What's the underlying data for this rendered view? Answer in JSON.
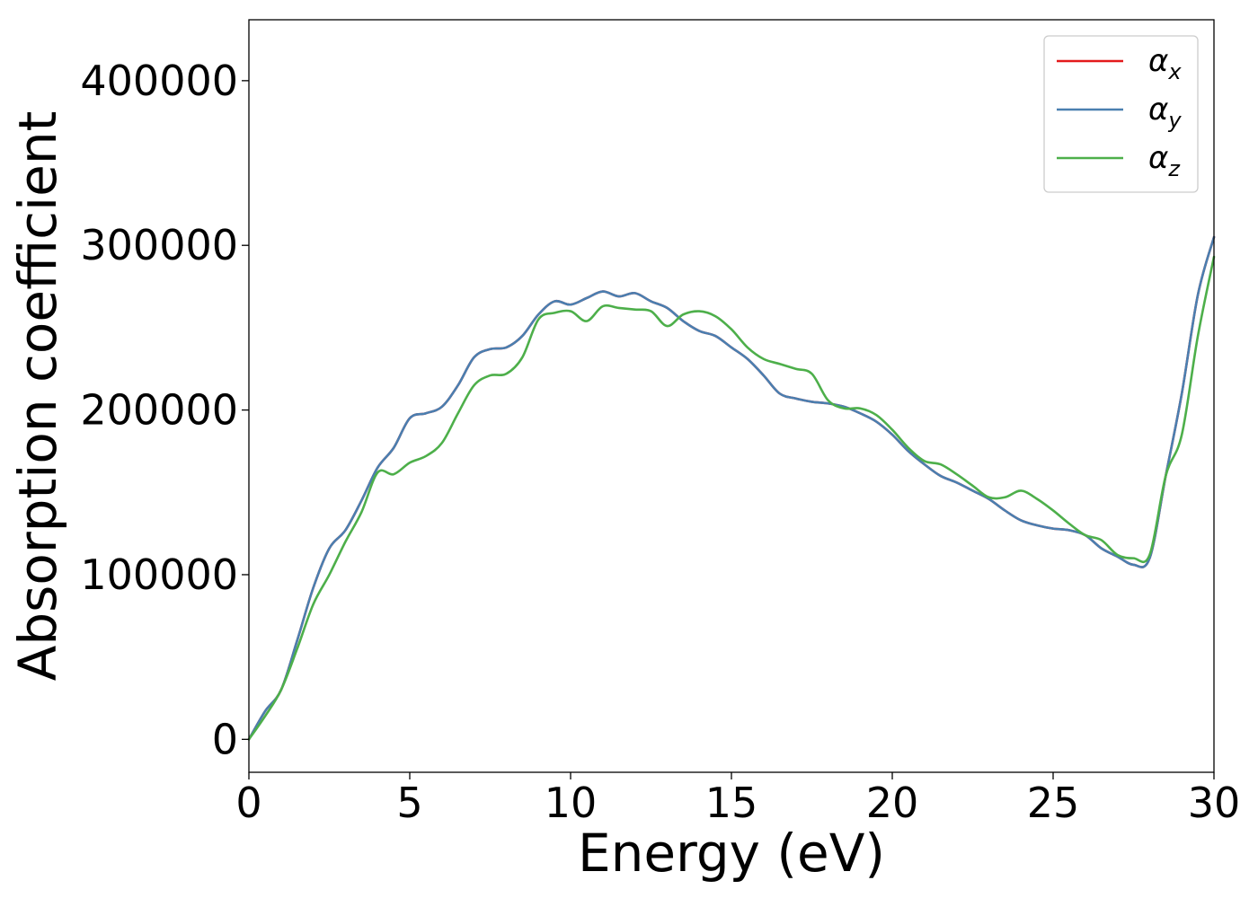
{
  "chart_data": {
    "type": "line",
    "title": "",
    "xlabel": "Energy (eV)",
    "ylabel": "Absorption coefficient",
    "xlim": [
      0,
      30
    ],
    "ylim": [
      -20000,
      437000
    ],
    "xticks": [
      0,
      5,
      10,
      15,
      20,
      25,
      30
    ],
    "yticks": [
      0,
      100000,
      200000,
      300000,
      400000
    ],
    "grid": false,
    "legend_position": "top-right",
    "series": [
      {
        "name": "α_x",
        "legend_base": "α",
        "legend_sub": "x",
        "color": "#e41a1c",
        "x": [
          0,
          0.5,
          1,
          1.5,
          2,
          2.5,
          3,
          3.5,
          4,
          4.5,
          5,
          5.5,
          6,
          6.5,
          7,
          7.5,
          8,
          8.5,
          9,
          9.5,
          10,
          10.5,
          11,
          11.5,
          12,
          12.5,
          13,
          13.5,
          14,
          14.5,
          15,
          15.5,
          16,
          16.5,
          17,
          17.5,
          18,
          18.5,
          19,
          19.5,
          20,
          20.5,
          21,
          21.5,
          22,
          22.5,
          23,
          23.5,
          24,
          24.5,
          25,
          25.5,
          26,
          26.5,
          27,
          27.5,
          28,
          28.5,
          29,
          29.5,
          30
        ],
        "values": [
          0,
          17000,
          30000,
          60000,
          92000,
          116000,
          127000,
          145000,
          165000,
          177000,
          195000,
          198000,
          202000,
          215000,
          232000,
          237000,
          238000,
          245000,
          258000,
          266000,
          264000,
          268000,
          272000,
          269000,
          271000,
          266000,
          262000,
          254000,
          248000,
          245000,
          238000,
          231000,
          221000,
          210000,
          207000,
          205000,
          204000,
          202000,
          198000,
          193000,
          185000,
          175000,
          167000,
          160000,
          156000,
          151000,
          146000,
          139000,
          133000,
          130000,
          128000,
          127000,
          124000,
          116000,
          111000,
          106000,
          110000,
          160000,
          210000,
          270000,
          305000
        ]
      },
      {
        "name": "α_y",
        "legend_base": "α",
        "legend_sub": "y",
        "color": "#4a7fb0",
        "x": [
          0,
          0.5,
          1,
          1.5,
          2,
          2.5,
          3,
          3.5,
          4,
          4.5,
          5,
          5.5,
          6,
          6.5,
          7,
          7.5,
          8,
          8.5,
          9,
          9.5,
          10,
          10.5,
          11,
          11.5,
          12,
          12.5,
          13,
          13.5,
          14,
          14.5,
          15,
          15.5,
          16,
          16.5,
          17,
          17.5,
          18,
          18.5,
          19,
          19.5,
          20,
          20.5,
          21,
          21.5,
          22,
          22.5,
          23,
          23.5,
          24,
          24.5,
          25,
          25.5,
          26,
          26.5,
          27,
          27.5,
          28,
          28.5,
          29,
          29.5,
          30
        ],
        "values": [
          0,
          17000,
          30000,
          60000,
          92000,
          116000,
          127000,
          145000,
          165000,
          177000,
          195000,
          198000,
          202000,
          215000,
          232000,
          237000,
          238000,
          245000,
          258000,
          266000,
          264000,
          268000,
          272000,
          269000,
          271000,
          266000,
          262000,
          254000,
          248000,
          245000,
          238000,
          231000,
          221000,
          210000,
          207000,
          205000,
          204000,
          202000,
          198000,
          193000,
          185000,
          175000,
          167000,
          160000,
          156000,
          151000,
          146000,
          139000,
          133000,
          130000,
          128000,
          127000,
          124000,
          116000,
          111000,
          106000,
          110000,
          160000,
          210000,
          270000,
          305000
        ]
      },
      {
        "name": "α_z",
        "legend_base": "α",
        "legend_sub": "z",
        "color": "#4daf4a",
        "x": [
          0,
          0.5,
          1,
          1.5,
          2,
          2.5,
          3,
          3.5,
          4,
          4.5,
          5,
          5.5,
          6,
          6.5,
          7,
          7.5,
          8,
          8.5,
          9,
          9.5,
          10,
          10.5,
          11,
          11.5,
          12,
          12.5,
          13,
          13.5,
          14,
          14.5,
          15,
          15.5,
          16,
          16.5,
          17,
          17.5,
          18,
          18.5,
          19,
          19.5,
          20,
          20.5,
          21,
          21.5,
          22,
          22.5,
          23,
          23.5,
          24,
          24.5,
          25,
          25.5,
          26,
          26.5,
          27,
          27.5,
          28,
          28.5,
          29,
          29.5,
          30
        ],
        "values": [
          0,
          14000,
          30000,
          55000,
          82000,
          100000,
          120000,
          138000,
          162000,
          161000,
          168000,
          172000,
          180000,
          198000,
          215000,
          221000,
          222000,
          232000,
          255000,
          259000,
          260000,
          254000,
          263000,
          262000,
          261000,
          260000,
          251000,
          258000,
          260000,
          257000,
          249000,
          238000,
          231000,
          228000,
          225000,
          222000,
          206000,
          201000,
          201000,
          197000,
          188000,
          177000,
          169000,
          167000,
          161000,
          154000,
          147000,
          147000,
          151000,
          146000,
          139000,
          131000,
          124000,
          121000,
          112000,
          110000,
          112000,
          160000,
          185000,
          245000,
          293000
        ]
      }
    ]
  }
}
